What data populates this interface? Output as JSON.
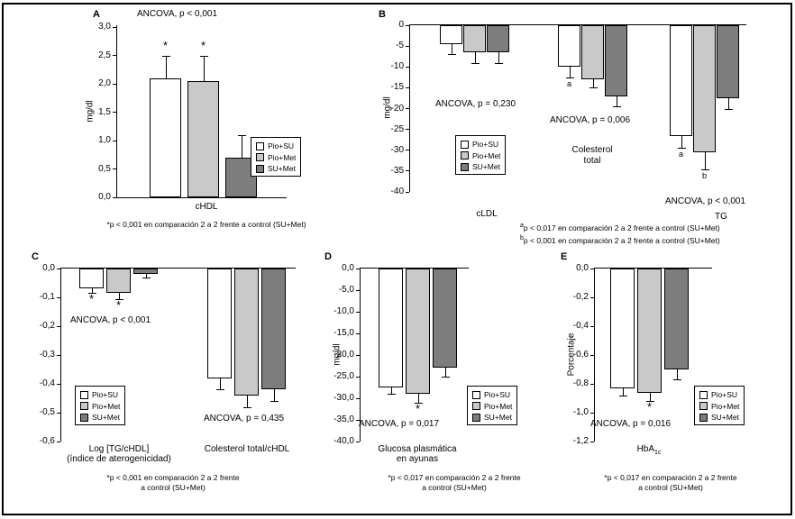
{
  "figure": {
    "legend_labels": [
      "Pio+SU",
      "Pio+Met",
      "SU+Met"
    ],
    "colors": {
      "pio_su": "#ffffff",
      "pio_met": "#c9c9c9",
      "su_met": "#7d7d7d",
      "axis": "#000000"
    }
  },
  "chart_data": [
    {
      "id": "A",
      "type": "bar",
      "ylabel": "mg/dl",
      "ylim": [
        0,
        3
      ],
      "direction": "up",
      "ticks": [
        "3,0",
        "2,5",
        "2,0",
        "1,5",
        "1,0",
        "0,5",
        "0,0"
      ],
      "ancova": [
        "ANCOVA, p < 0,001"
      ],
      "series_names": [
        "Pio+SU",
        "Pio+Met",
        "SU+Met"
      ],
      "groups": [
        {
          "label": "cHDL",
          "values": [
            2.1,
            2.05,
            0.7
          ],
          "errors": [
            0.4,
            0.45,
            0.4
          ],
          "markers": [
            "*",
            "*",
            null
          ]
        }
      ],
      "footnotes": [
        {
          "text": "*p < 0,001 en comparación 2 a 2 frente a control (SU+Met)"
        }
      ]
    },
    {
      "id": "B",
      "type": "bar",
      "ylabel": "mg/dl",
      "ylim": [
        -40,
        0
      ],
      "direction": "down",
      "ticks": [
        "0",
        "-5",
        "-10",
        "-15",
        "-20",
        "-25",
        "-30",
        "-35",
        "-40"
      ],
      "ancova": [
        "ANCOVA, p = 0,230",
        "ANCOVA, p = 0,006",
        "ANCOVA, p < 0,001"
      ],
      "series_names": [
        "Pio+SU",
        "Pio+Met",
        "SU+Met"
      ],
      "groups": [
        {
          "label": "cLDL",
          "values": [
            -4.5,
            -6.5,
            -6.5
          ],
          "errors": [
            2.5,
            2.5,
            2.5
          ],
          "markers": [
            null,
            null,
            null
          ]
        },
        {
          "label_lines": [
            "Colesterol",
            "total"
          ],
          "values": [
            -10,
            -13,
            -17
          ],
          "errors": [
            2.5,
            2,
            2.5
          ],
          "markers": [
            "a",
            null,
            null
          ]
        },
        {
          "label": "TG",
          "values": [
            -26.5,
            -30.5,
            -17.5
          ],
          "errors": [
            3,
            4,
            2.5
          ],
          "markers": [
            "a",
            "b",
            null
          ]
        }
      ],
      "footnotes": [
        {
          "sup": "a",
          "text": "p < 0,017 en comparación 2 a 2 frente a control (SU+Met)"
        },
        {
          "sup": "b",
          "text": "p < 0,001 en comparación 2 a 2 frente a control (SU+Met)"
        }
      ]
    },
    {
      "id": "C",
      "type": "bar",
      "ylabel": "",
      "ylim": [
        -0.6,
        0
      ],
      "direction": "down",
      "ticks": [
        "0,0",
        "-0,1",
        "-0,2",
        "-0,3",
        "-0,4",
        "-0,5",
        "-0,6"
      ],
      "ancova": [
        "ANCOVA, p < 0,001",
        "ANCOVA, p = 0,435"
      ],
      "series_names": [
        "Pio+SU",
        "Pio+Met",
        "SU+Met"
      ],
      "groups": [
        {
          "label_lines": [
            "Log [TG/cHDL]",
            "(índice de aterogenicidad)"
          ],
          "values": [
            -0.07,
            -0.085,
            -0.02
          ],
          "errors": [
            0.015,
            0.02,
            0.012
          ],
          "markers": [
            "*",
            "*",
            null
          ]
        },
        {
          "label": "Colesterol total/cHDL",
          "values": [
            -0.38,
            -0.44,
            -0.42
          ],
          "errors": [
            0.04,
            0.04,
            0.04
          ],
          "markers": [
            null,
            null,
            null
          ]
        }
      ],
      "footnotes": [
        {
          "text": "*p < 0,001 en comparación 2 a 2 frente"
        },
        {
          "text": "a control (SU+Met)"
        }
      ]
    },
    {
      "id": "D",
      "type": "bar",
      "ylabel": "mg/dl",
      "ylim": [
        -40,
        0
      ],
      "direction": "down",
      "ticks": [
        "0,0",
        "-5,0",
        "-10,0",
        "-15,0",
        "-20,0",
        "-25,0",
        "-30,0",
        "-35,0",
        "-40,0"
      ],
      "ancova": [
        "ANCOVA, p = 0,017"
      ],
      "series_names": [
        "Pio+SU",
        "Pio+Met",
        "SU+Met"
      ],
      "groups": [
        {
          "label_lines": [
            "Glucosa plasmática",
            "en ayunas"
          ],
          "values": [
            -27.5,
            -29,
            -23
          ],
          "errors": [
            1.5,
            2,
            2
          ],
          "markers": [
            null,
            "*",
            null
          ]
        }
      ],
      "footnotes": [
        {
          "text": "*p < 0,017 en comparación 2 a 2 frente"
        },
        {
          "text": "a control (SU+Met)"
        }
      ]
    },
    {
      "id": "E",
      "type": "bar",
      "ylabel": "Porcentaje",
      "ylim": [
        -1.2,
        0
      ],
      "direction": "down",
      "ticks": [
        "0,0",
        "-0,2",
        "-0,4",
        "-0,6",
        "-0,8",
        "-1,0",
        "-1,2"
      ],
      "ancova": [
        "ANCOVA, p = 0,016"
      ],
      "series_names": [
        "Pio+SU",
        "Pio+Met",
        "SU+Met"
      ],
      "groups": [
        {
          "label": "HbA",
          "label_sub": "1c",
          "values": [
            -0.83,
            -0.86,
            -0.7
          ],
          "errors": [
            0.05,
            0.06,
            0.07
          ],
          "markers": [
            null,
            "*",
            null
          ]
        }
      ],
      "footnotes": [
        {
          "text": "*p < 0,017 en comparación 2 a 2 frente"
        },
        {
          "text": "a control (SU+Met)"
        }
      ]
    }
  ]
}
